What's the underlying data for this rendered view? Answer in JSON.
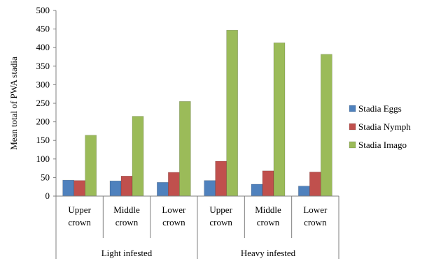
{
  "chart_data": {
    "type": "bar",
    "title": "",
    "xlabel": "",
    "ylabel": "Mean total of PWA stadia",
    "ylim": [
      0,
      500
    ],
    "yticks": [
      0,
      50,
      100,
      150,
      200,
      250,
      300,
      350,
      400,
      450,
      500
    ],
    "grid": false,
    "legend_position": "right",
    "groups": [
      "Light infested",
      "Heavy infested"
    ],
    "categories": [
      [
        "Upper",
        "crown"
      ],
      [
        "Middle",
        "crown"
      ],
      [
        "Lower",
        "crown"
      ],
      [
        "Upper",
        "crown"
      ],
      [
        "Middle",
        "crown"
      ],
      [
        "Lower",
        "crown"
      ]
    ],
    "series": [
      {
        "name": "Stadia Eggs",
        "color": "#4f81bd",
        "values": [
          43,
          41,
          37,
          42,
          32,
          27
        ]
      },
      {
        "name": "Stadia Nymph",
        "color": "#c0504d",
        "values": [
          42,
          54,
          64,
          94,
          68,
          65
        ]
      },
      {
        "name": "Stadia Imago",
        "color": "#9bbb59",
        "values": [
          164,
          215,
          255,
          447,
          413,
          382
        ]
      }
    ]
  }
}
